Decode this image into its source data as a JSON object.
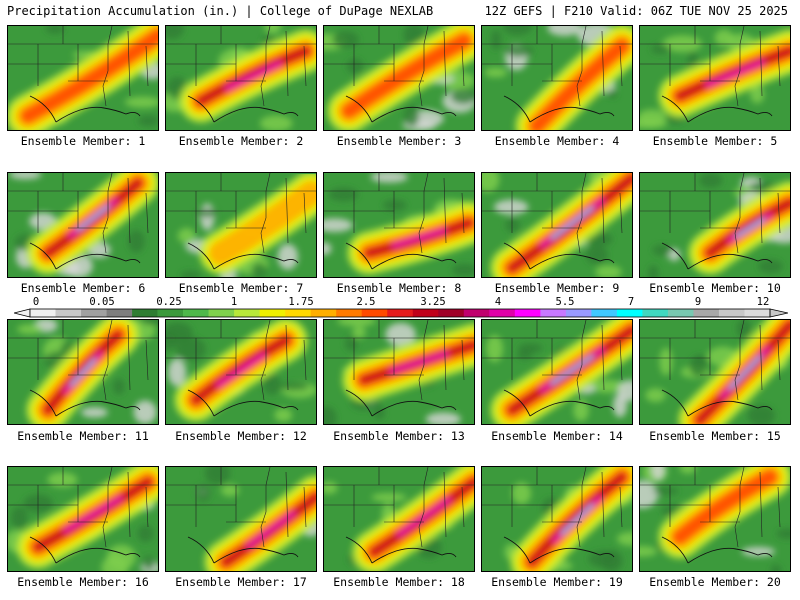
{
  "header": {
    "left": "Precipitation Accumulation (in.) | College of DuPage NEXLAB",
    "right": "12Z GEFS | F210 Valid: 06Z TUE NOV 25 2025"
  },
  "colorbar": {
    "labels": [
      "0",
      "0.05",
      "0.25",
      "1",
      "1.75",
      "2.5",
      "3.25",
      "4",
      "5.5",
      "7",
      "9",
      "12"
    ],
    "colors": [
      "#f0f0f0",
      "#c8c8c8",
      "#a0a0a0",
      "#7e7e7e",
      "#2f7d32",
      "#3c9a3c",
      "#4eb84a",
      "#7fd04c",
      "#b8e83a",
      "#f0f000",
      "#ffd800",
      "#ffae00",
      "#ff7a00",
      "#ff4a00",
      "#e41a1c",
      "#c0001a",
      "#a00028",
      "#c0006e",
      "#e000a8",
      "#ff00ff",
      "#c878ff",
      "#9a9aff",
      "#40c8ff",
      "#00ffff",
      "#40d8c0",
      "#78c8b0",
      "#a8a8a8",
      "#c8c8c8",
      "#dcdcdc"
    ]
  },
  "members": [
    {
      "caption": "Ensemble Member: 1"
    },
    {
      "caption": "Ensemble Member: 2"
    },
    {
      "caption": "Ensemble Member: 3"
    },
    {
      "caption": "Ensemble Member: 4"
    },
    {
      "caption": "Ensemble Member: 5"
    },
    {
      "caption": "Ensemble Member: 6"
    },
    {
      "caption": "Ensemble Member: 7"
    },
    {
      "caption": "Ensemble Member: 8"
    },
    {
      "caption": "Ensemble Member: 9"
    },
    {
      "caption": "Ensemble Member: 10"
    },
    {
      "caption": "Ensemble Member: 11"
    },
    {
      "caption": "Ensemble Member: 12"
    },
    {
      "caption": "Ensemble Member: 13"
    },
    {
      "caption": "Ensemble Member: 14"
    },
    {
      "caption": "Ensemble Member: 15"
    },
    {
      "caption": "Ensemble Member: 16"
    },
    {
      "caption": "Ensemble Member: 17"
    },
    {
      "caption": "Ensemble Member: 18"
    },
    {
      "caption": "Ensemble Member: 19"
    },
    {
      "caption": "Ensemble Member: 20"
    }
  ]
}
